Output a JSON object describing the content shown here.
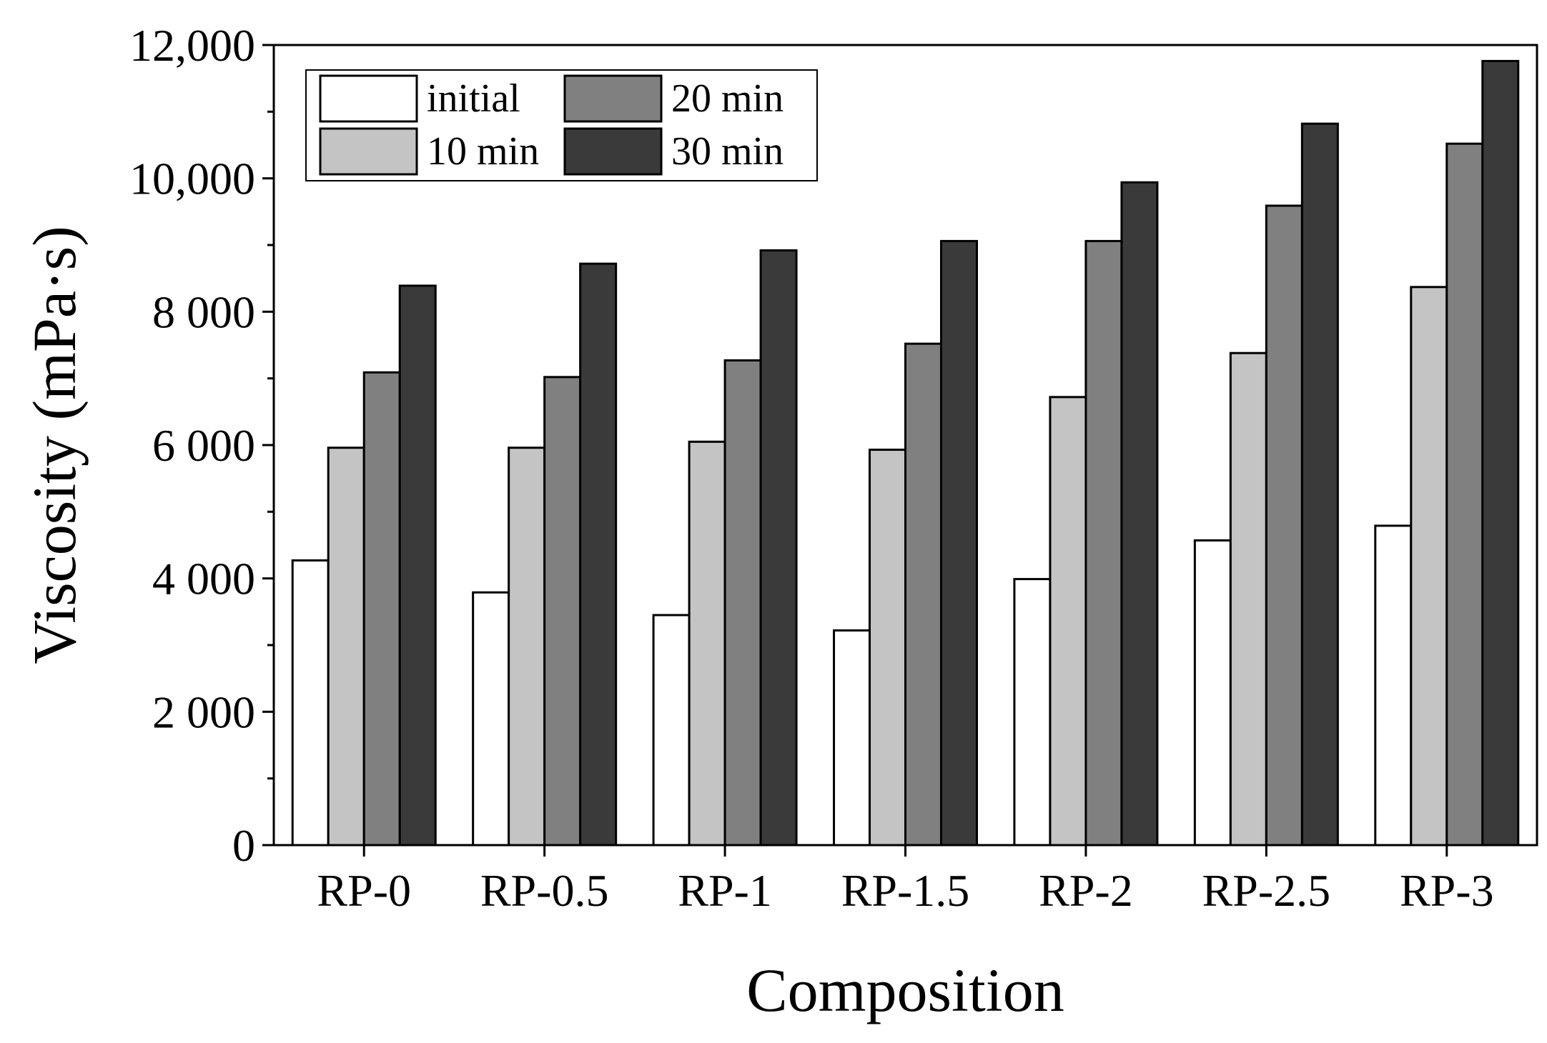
{
  "chart_data": {
    "type": "bar",
    "title": "",
    "xlabel": "Composition",
    "ylabel": "Viscosity (mPa·s)",
    "ylim": [
      0,
      12000
    ],
    "yticks": [
      0,
      2000,
      4000,
      6000,
      8000,
      10000,
      12000
    ],
    "ytick_labels": [
      "0",
      "2 000",
      "4 000",
      "6 000",
      "8 000",
      "10,000",
      "12,000"
    ],
    "categories": [
      "RP-0",
      "RP-0.5",
      "RP-1",
      "RP-1.5",
      "RP-2",
      "RP-2.5",
      "RP-3"
    ],
    "legend_position": "top-left",
    "series": [
      {
        "name": "initial",
        "color": "#ffffff",
        "values": [
          4270,
          3790,
          3450,
          3220,
          3990,
          4570,
          4790
        ]
      },
      {
        "name": "10 min",
        "color": "#c4c4c4",
        "values": [
          5960,
          5960,
          6050,
          5930,
          6720,
          7380,
          8370
        ]
      },
      {
        "name": "20 min",
        "color": "#808080",
        "values": [
          7090,
          7020,
          7270,
          7520,
          9060,
          9590,
          10520
        ]
      },
      {
        "name": "30 min",
        "color": "#3a3a3a",
        "values": [
          8390,
          8720,
          8920,
          9060,
          9940,
          10820,
          11760
        ]
      }
    ]
  }
}
